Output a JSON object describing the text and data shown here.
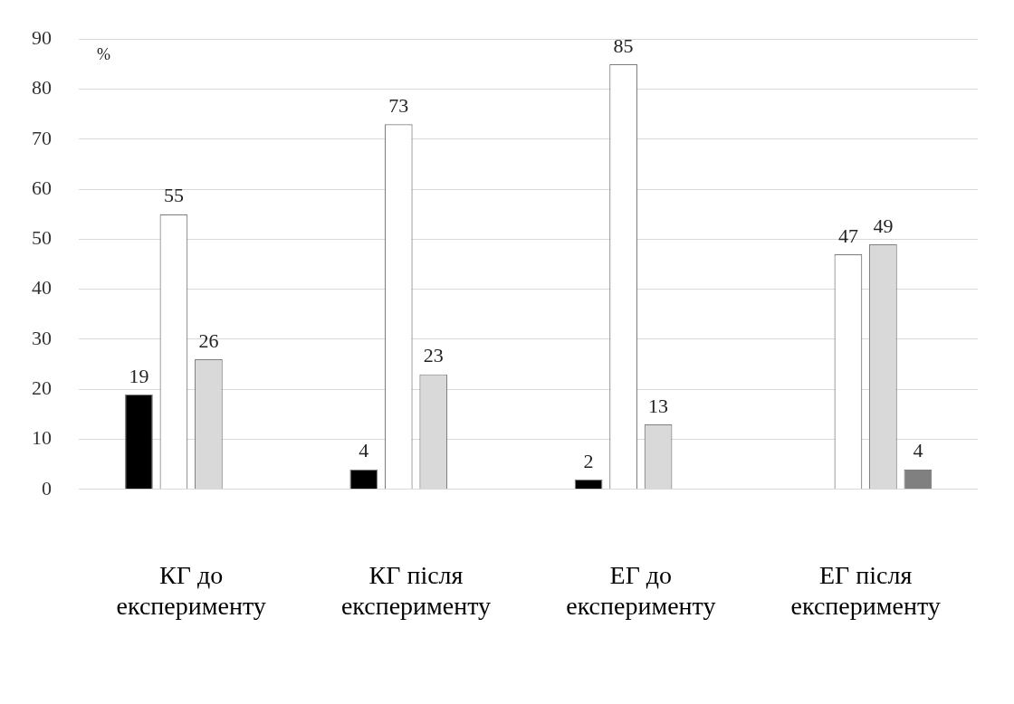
{
  "chart_data": {
    "type": "bar",
    "ylabel": "%",
    "categories": [
      "КГ до\nексперименту",
      "КГ після\nексперименту",
      "ЕГ до\nексперименту",
      "ЕГ після\nексперименту"
    ],
    "series": [
      {
        "color": "#000000",
        "values": [
          19,
          4,
          2,
          null
        ]
      },
      {
        "color": "#ffffff",
        "values": [
          55,
          73,
          85,
          47
        ]
      },
      {
        "color": "#d9d9d9",
        "values": [
          26,
          23,
          13,
          49
        ]
      },
      {
        "color": "#808080",
        "values": [
          null,
          null,
          null,
          4
        ]
      }
    ],
    "ylim": [
      0,
      90
    ],
    "yticks": [
      0,
      10,
      20,
      30,
      40,
      50,
      60,
      70,
      80,
      90
    ],
    "grid": "y",
    "data_labels": true,
    "legend": false
  }
}
